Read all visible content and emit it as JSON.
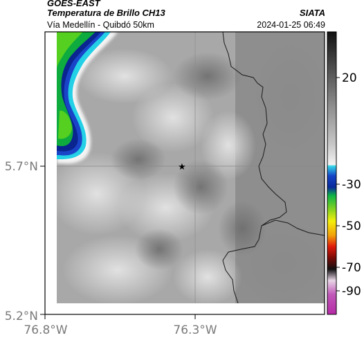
{
  "header": {
    "satellite": "GOES-EAST",
    "product": "Temperatura de Brillo CH13",
    "agency": "SIATA",
    "route": "Vía Medellín - Quibdó 50km",
    "datetime": "2024-01-25 06:49"
  },
  "axes": {
    "lat_ticks": [
      "5.7°N",
      "5.2°N"
    ],
    "lon_ticks": [
      "76.8°W",
      "76.3°W"
    ]
  },
  "colorbar": {
    "ticks": [
      "20",
      "-30",
      "-50",
      "-70",
      "-90"
    ]
  },
  "marker": {
    "symbol": "★",
    "name": "route-point-star"
  }
}
